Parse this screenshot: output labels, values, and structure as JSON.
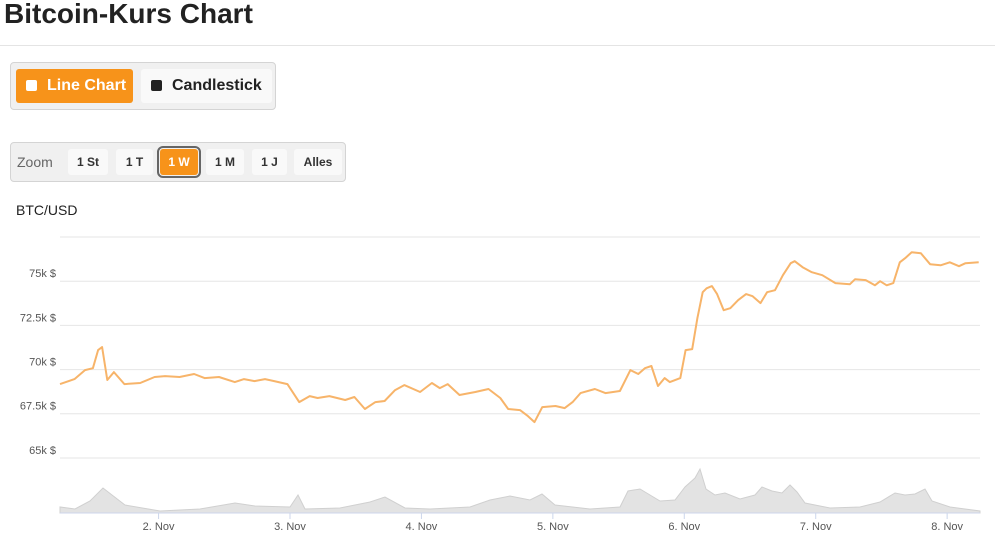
{
  "header": {
    "title": "Bitcoin-Kurs Chart"
  },
  "tabs": {
    "items": [
      "Line Chart",
      "Candlestick"
    ],
    "selected": 0
  },
  "zoom": {
    "label": "Zoom",
    "buttons": [
      "1 St",
      "1 T",
      "1 W",
      "1 M",
      "1 J",
      "Alles"
    ],
    "selected": 2
  },
  "chart_data": {
    "type": "line",
    "y_label": "BTC/USD",
    "color": "#f7b46a",
    "x": [
      1.25,
      1.36,
      1.44,
      1.5,
      1.54,
      1.57,
      1.61,
      1.66,
      1.74,
      1.86,
      1.97,
      2.05,
      2.16,
      2.27,
      2.35,
      2.46,
      2.58,
      2.65,
      2.73,
      2.81,
      2.88,
      2.98,
      3.07,
      3.15,
      3.21,
      3.3,
      3.42,
      3.49,
      3.57,
      3.65,
      3.72,
      3.8,
      3.87,
      3.99,
      4.08,
      4.14,
      4.2,
      4.29,
      4.41,
      4.51,
      4.6,
      4.66,
      4.75,
      4.81,
      4.86,
      4.92,
      5.02,
      5.09,
      5.15,
      5.21,
      5.32,
      5.4,
      5.51,
      5.59,
      5.65,
      5.7,
      5.75,
      5.8,
      5.85,
      5.89,
      5.97,
      6.01,
      6.06,
      6.1,
      6.14,
      6.17,
      6.21,
      6.25,
      6.3,
      6.35,
      6.41,
      6.47,
      6.52,
      6.58,
      6.63,
      6.69,
      6.75,
      6.81,
      6.84,
      6.9,
      6.97,
      7.05,
      7.15,
      7.26,
      7.3,
      7.38,
      7.45,
      7.49,
      7.54,
      7.59,
      7.64,
      7.68,
      7.73,
      7.8,
      7.87,
      7.95,
      8.02,
      8.09,
      8.14,
      8.24
    ],
    "values": [
      69180,
      69460,
      69970,
      70080,
      71100,
      71270,
      69410,
      69860,
      69180,
      69240,
      69580,
      69630,
      69580,
      69750,
      69520,
      69580,
      69290,
      69460,
      69350,
      69460,
      69350,
      69180,
      68160,
      68500,
      68390,
      68500,
      68280,
      68450,
      67770,
      68160,
      68220,
      68840,
      69120,
      68730,
      69240,
      68950,
      69180,
      68560,
      68730,
      68900,
      68390,
      67770,
      67710,
      67370,
      67030,
      67880,
      67940,
      67820,
      68160,
      68670,
      68900,
      68670,
      68790,
      69970,
      69750,
      70080,
      70200,
      69070,
      69520,
      69290,
      69520,
      71100,
      71160,
      72910,
      74380,
      74600,
      74720,
      74270,
      73360,
      73470,
      73930,
      74270,
      74150,
      73760,
      74380,
      74490,
      75340,
      76020,
      76130,
      75790,
      75510,
      75340,
      74890,
      74830,
      75110,
      75060,
      74770,
      75000,
      74770,
      74890,
      76070,
      76300,
      76640,
      76580,
      75960,
      75900,
      76070,
      75850,
      76020,
      76070
    ],
    "xlim": [
      1.25,
      8.25
    ],
    "xticks": [
      {
        "value": 2,
        "label": "2. Nov"
      },
      {
        "value": 3,
        "label": "3. Nov"
      },
      {
        "value": 4,
        "label": "4. Nov"
      },
      {
        "value": 5,
        "label": "5. Nov"
      },
      {
        "value": 6,
        "label": "6. Nov"
      },
      {
        "value": 7,
        "label": "7. Nov"
      },
      {
        "value": 8,
        "label": "8. Nov"
      }
    ],
    "ylim": [
      62000,
      77500
    ],
    "yticks": [
      {
        "value": 65000,
        "label": "65k $"
      },
      {
        "value": 67500,
        "label": "67.5k $"
      },
      {
        "value": 70000,
        "label": "70k $"
      },
      {
        "value": 72500,
        "label": "72.5k $"
      },
      {
        "value": 75000,
        "label": "75k $"
      }
    ],
    "grid": true
  }
}
